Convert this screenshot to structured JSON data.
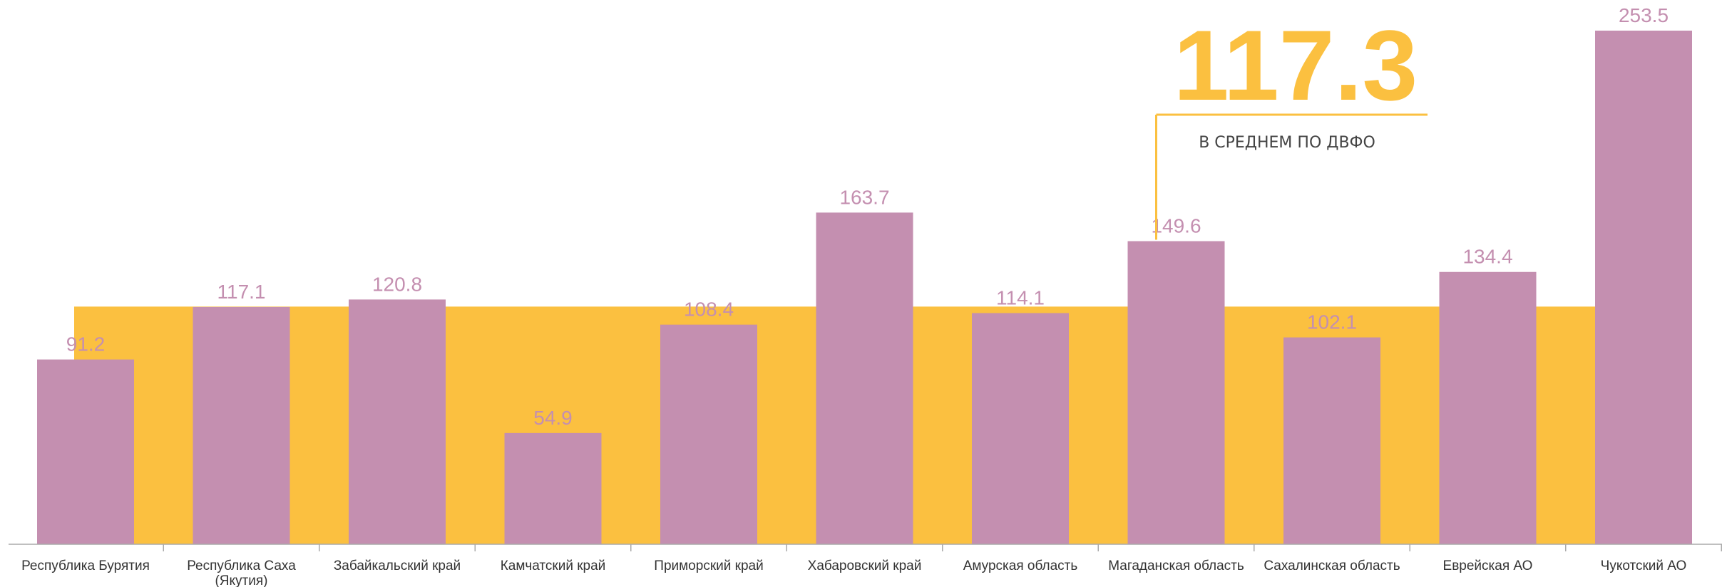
{
  "chart_data": {
    "type": "bar",
    "categories": [
      "Республика Бурятия",
      "Республика Саха (Якутия)",
      "Забайкальский край",
      "Камчатский край",
      "Приморский край",
      "Хабаровский край",
      "Амурская область",
      "Магаданская область",
      "Сахалинская область",
      "Еврейская АО",
      "Чукотский АО"
    ],
    "values": [
      91.2,
      117.1,
      120.8,
      54.9,
      108.4,
      163.7,
      114.1,
      149.6,
      102.1,
      134.4,
      253.5
    ],
    "value_labels": [
      "91.2",
      "117.1",
      "120.8",
      "54.9",
      "108.4",
      "163.7",
      "114.1",
      "149.6",
      "102.1",
      "134.4",
      "253.5"
    ],
    "average": 117.3,
    "average_label": "117.3",
    "average_caption": "В СРЕДНЕМ ПО ДВФО",
    "ylim": [
      0,
      253.5
    ],
    "grid": false,
    "colors": {
      "bar": "#c48fb0",
      "average_band": "#fbc040",
      "axis": "#aaaaaa",
      "label": "#333333"
    }
  }
}
